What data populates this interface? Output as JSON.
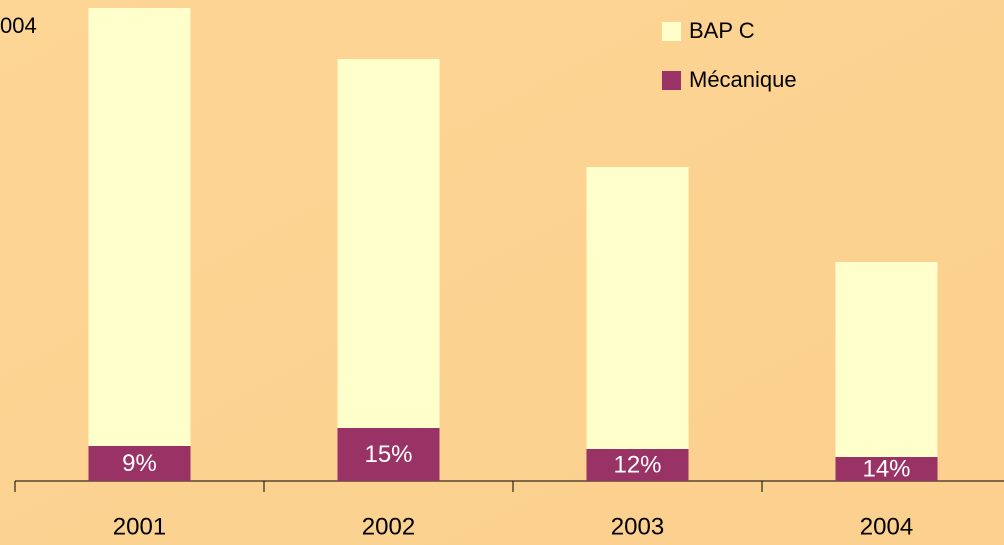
{
  "chart_data": {
    "type": "stacked_bar",
    "title": "004",
    "categories": [
      "2001",
      "2002",
      "2003",
      "2004"
    ],
    "series": [
      {
        "name": "Mécanique",
        "color": "#993366",
        "values": [
          35,
          53,
          32,
          24
        ]
      },
      {
        "name": "BAP C",
        "color": "#ffffcc",
        "values": [
          438,
          369,
          282,
          195
        ]
      }
    ],
    "annotations": [
      "9%",
      "15%",
      "12%",
      "14%"
    ],
    "legend": "upper right"
  }
}
